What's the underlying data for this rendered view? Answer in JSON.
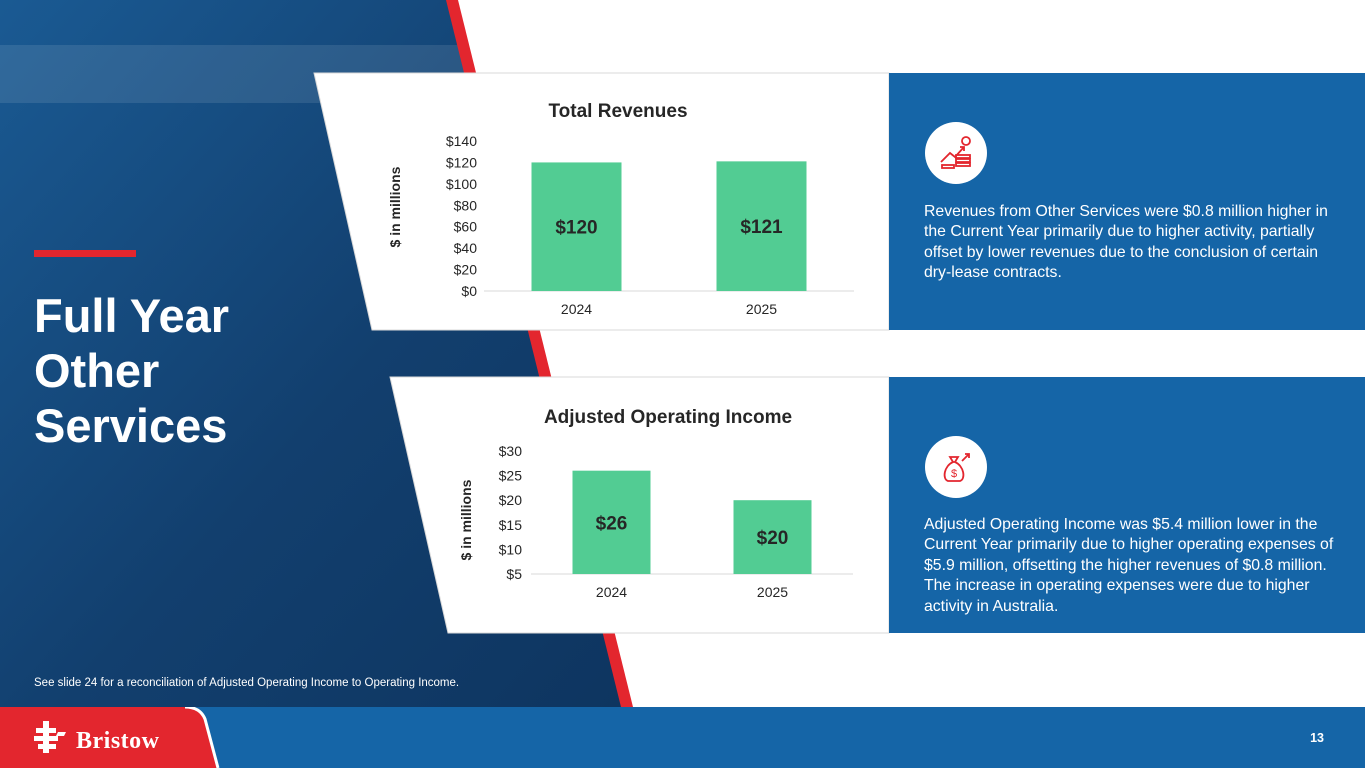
{
  "slide": {
    "title_lines": [
      "Full Year",
      "Other",
      "Services"
    ],
    "footnote": "See slide 24 for a reconciliation of Adjusted Operating Income to Operating Income.",
    "page_number": "13",
    "logo_text": "Bristow"
  },
  "colors": {
    "navy": "#0f3d6e",
    "blue": "#1565a7",
    "red": "#e3262e",
    "bar_green": "#52cc93"
  },
  "revenue_panel": {
    "icon": "revenue-growth-icon",
    "description": "Revenues from Other Services were $0.8 million higher in the Current Year primarily due to higher activity, partially offset by lower revenues due to the conclusion of certain dry-lease contracts."
  },
  "aoi_panel": {
    "icon": "money-bag-icon",
    "description": "Adjusted Operating Income was $5.4 million lower in the Current Year primarily due to higher operating expenses of $5.9 million, offsetting the higher revenues of $0.8 million. The increase in operating expenses were due to higher activity in Australia."
  },
  "chart_data": [
    {
      "type": "bar",
      "title": "Total Revenues",
      "ylabel": "$ in millions",
      "categories": [
        "2024",
        "2025"
      ],
      "values": [
        120,
        121
      ],
      "data_labels": [
        "$120",
        "$121"
      ],
      "yticks": [
        "$0",
        "$20",
        "$40",
        "$60",
        "$80",
        "$100",
        "$120",
        "$140"
      ],
      "ylim": [
        0,
        140
      ],
      "grid": false
    },
    {
      "type": "bar",
      "title": "Adjusted Operating Income",
      "ylabel": "$ in millions",
      "categories": [
        "2024",
        "2025"
      ],
      "values": [
        26,
        20
      ],
      "data_labels": [
        "$26",
        "$20"
      ],
      "yticks": [
        "$5",
        "$10",
        "$15",
        "$20",
        "$25",
        "$30"
      ],
      "ylim": [
        5,
        30
      ],
      "grid": false
    }
  ]
}
